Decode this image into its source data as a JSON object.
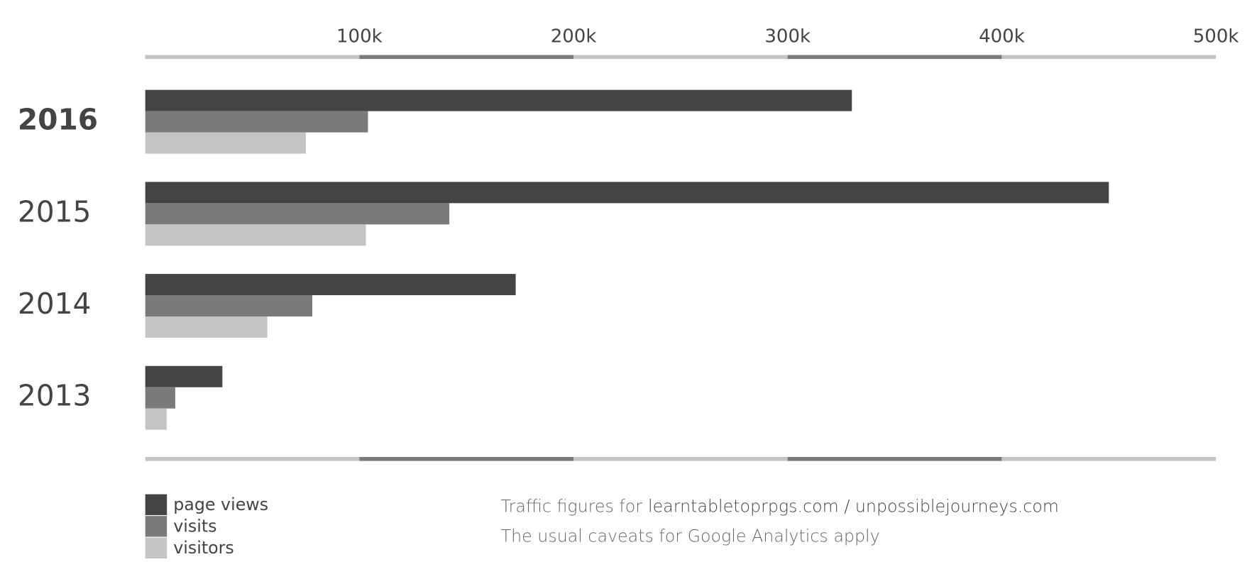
{
  "chart_data": {
    "type": "hbar",
    "categories": [
      "2016",
      "2015",
      "2014",
      "2013"
    ],
    "highlight_category": "2016",
    "series": [
      {
        "name": "page views",
        "color": "#444444",
        "values": [
          330000,
          450000,
          173000,
          36000
        ]
      },
      {
        "name": "visits",
        "color": "#7a7a7a",
        "values": [
          104000,
          142000,
          78000,
          14000
        ]
      },
      {
        "name": "visitors",
        "color": "#c4c4c4",
        "values": [
          75000,
          103000,
          57000,
          10000
        ]
      }
    ],
    "xlim": [
      0,
      500000
    ],
    "xticks": [
      {
        "value": 100000,
        "label": "100k"
      },
      {
        "value": 200000,
        "label": "200k"
      },
      {
        "value": 300000,
        "label": "300k"
      },
      {
        "value": 400000,
        "label": "400k"
      },
      {
        "value": 500000,
        "label": "500k"
      }
    ],
    "axis_colors": [
      "#c4c4c4",
      "#7a7a7a"
    ],
    "grid": false,
    "legend": "bottom-left",
    "notes": [
      [
        "Traffic figures for",
        "learntabletoprpgs.com / unpossiblejourneys.com"
      ],
      [
        "The usual caveats for Google Analytics apply"
      ]
    ]
  }
}
